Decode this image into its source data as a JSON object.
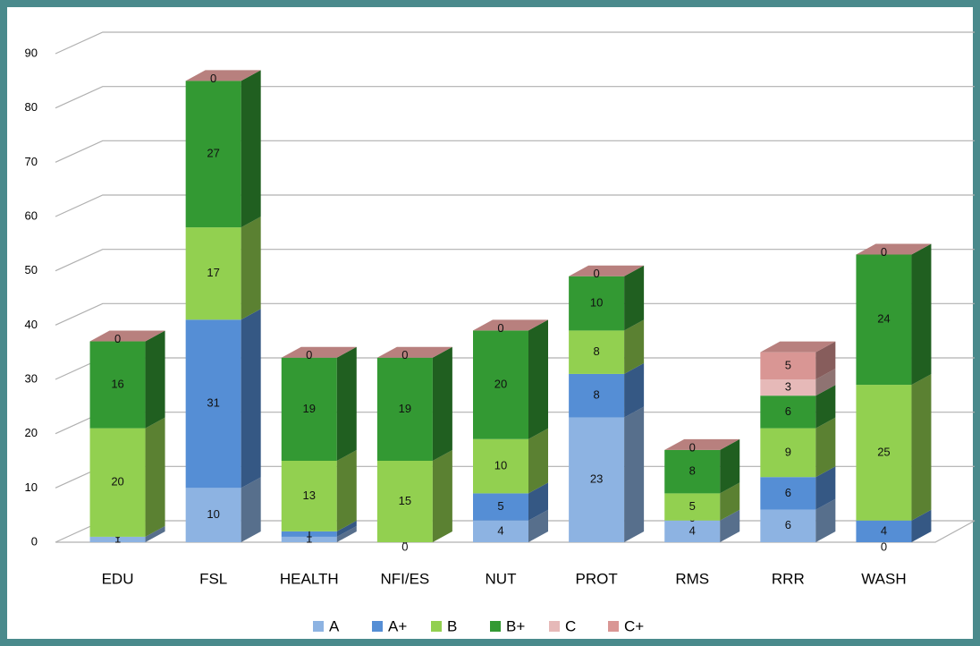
{
  "chart_data": {
    "type": "bar3d_stacked",
    "categories": [
      "EDU",
      "FSL",
      "HEALTH",
      "NFI/ES",
      "NUT",
      "PROT",
      "RMS",
      "RRR",
      "WASH"
    ],
    "series": [
      {
        "name": "A",
        "color": "#8db3e2",
        "values": [
          1,
          10,
          1,
          0,
          4,
          23,
          4,
          6,
          0
        ]
      },
      {
        "name": "A+",
        "color": "#558ed5",
        "values": [
          0,
          31,
          1,
          0,
          5,
          8,
          0,
          6,
          4
        ]
      },
      {
        "name": "B",
        "color": "#92d050",
        "values": [
          20,
          17,
          13,
          15,
          10,
          8,
          5,
          9,
          25
        ]
      },
      {
        "name": "B+",
        "color": "#339933",
        "values": [
          16,
          27,
          19,
          19,
          20,
          10,
          8,
          6,
          24
        ]
      },
      {
        "name": "C",
        "color": "#e6b9b8",
        "values": [
          0,
          0,
          0,
          0,
          0,
          0,
          0,
          3,
          0
        ]
      },
      {
        "name": "C+",
        "color": "#d99694",
        "values": [
          0,
          0,
          0,
          0,
          0,
          0,
          0,
          5,
          0
        ]
      }
    ],
    "ylim": [
      0,
      90
    ],
    "yticks": [
      0,
      10,
      20,
      30,
      40,
      50,
      60,
      70,
      80,
      90
    ],
    "grid": true,
    "legend": "bottom"
  }
}
